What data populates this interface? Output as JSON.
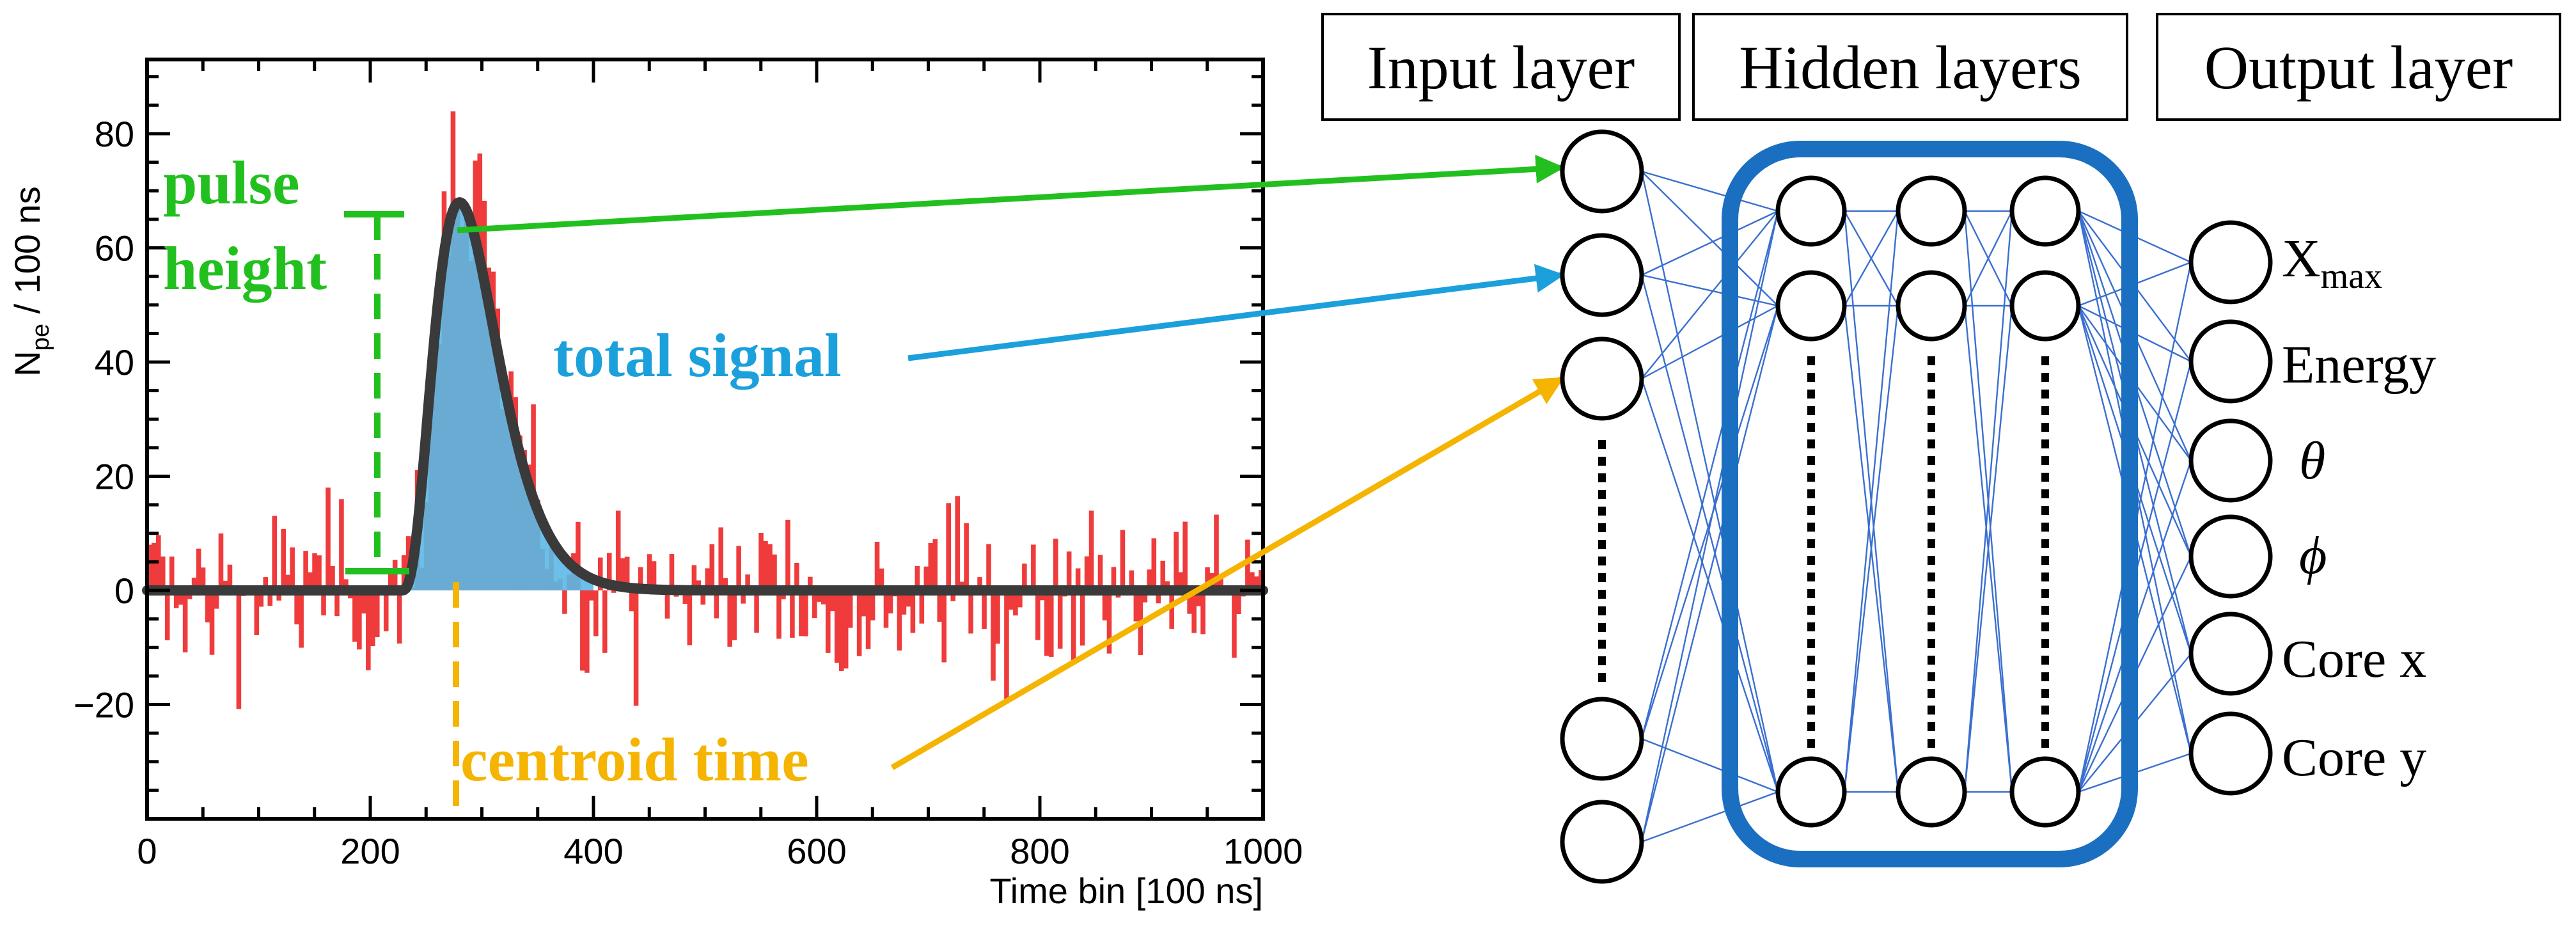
{
  "chart_data": {
    "type": "bar",
    "xlabel": "Time bin [100 ns]",
    "ylabel_main": "N",
    "ylabel_sub": "pe",
    "ylabel_suffix": " / 100 ns",
    "xlim": [
      0,
      1000
    ],
    "ylim": [
      -40,
      93
    ],
    "xticks": [
      "0",
      "200",
      "400",
      "600",
      "800",
      "1000"
    ],
    "xtick_values": [
      0,
      200,
      400,
      600,
      800,
      1000
    ],
    "yticks": [
      "−20",
      "0",
      "20",
      "40",
      "60",
      "80"
    ],
    "ytick_values": [
      -20,
      0,
      20,
      40,
      60,
      80
    ],
    "series": [
      {
        "role": "signal-histogram",
        "color": "#ef3b3b"
      },
      {
        "role": "fit-curve",
        "color": "#3a3a3a",
        "peak_x": 280,
        "peak_y": 68,
        "rise_start_x": 228,
        "tail_end_x": 400
      },
      {
        "role": "integrated-area",
        "color": "#5bb8e6"
      }
    ],
    "annotations": {
      "pulse_height_line1": "pulse",
      "pulse_height_line2": "height",
      "total_signal": "total signal",
      "centroid_time": "centroid time"
    },
    "annotation_colors": {
      "pulse_height": "#22c01f",
      "total_signal": "#1ba0dc",
      "centroid_time": "#f5b400"
    }
  },
  "network": {
    "input_label": "Input layer",
    "hidden_label": "Hidden layers",
    "output_label": "Output layer",
    "output_labels": [
      "X",
      "Energy",
      "θ",
      "ϕ",
      "Core x",
      "Core y"
    ],
    "xmax_sub": "max",
    "frame_color": "#1a6fc0",
    "edge_color": "#3a6fd0"
  }
}
